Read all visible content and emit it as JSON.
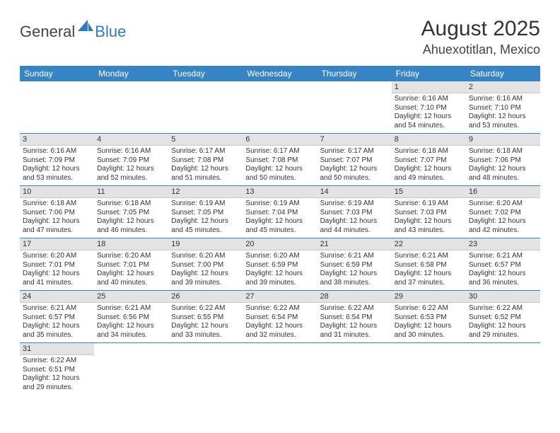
{
  "logo": {
    "general": "General",
    "blue": "Blue"
  },
  "title": "August 2025",
  "location": "Ahuexotitlan, Mexico",
  "colors": {
    "header_bg": "#3684c6",
    "header_text": "#ffffff",
    "daynum_bg": "#e3e3e3",
    "row_border": "#3684c6",
    "blue": "#2e7cbf"
  },
  "day_headers": [
    "Sunday",
    "Monday",
    "Tuesday",
    "Wednesday",
    "Thursday",
    "Friday",
    "Saturday"
  ],
  "weeks": [
    [
      null,
      null,
      null,
      null,
      null,
      {
        "n": "1",
        "sr": "Sunrise: 6:16 AM",
        "ss": "Sunset: 7:10 PM",
        "dl": "Daylight: 12 hours and 54 minutes."
      },
      {
        "n": "2",
        "sr": "Sunrise: 6:16 AM",
        "ss": "Sunset: 7:10 PM",
        "dl": "Daylight: 12 hours and 53 minutes."
      }
    ],
    [
      {
        "n": "3",
        "sr": "Sunrise: 6:16 AM",
        "ss": "Sunset: 7:09 PM",
        "dl": "Daylight: 12 hours and 53 minutes."
      },
      {
        "n": "4",
        "sr": "Sunrise: 6:16 AM",
        "ss": "Sunset: 7:09 PM",
        "dl": "Daylight: 12 hours and 52 minutes."
      },
      {
        "n": "5",
        "sr": "Sunrise: 6:17 AM",
        "ss": "Sunset: 7:08 PM",
        "dl": "Daylight: 12 hours and 51 minutes."
      },
      {
        "n": "6",
        "sr": "Sunrise: 6:17 AM",
        "ss": "Sunset: 7:08 PM",
        "dl": "Daylight: 12 hours and 50 minutes."
      },
      {
        "n": "7",
        "sr": "Sunrise: 6:17 AM",
        "ss": "Sunset: 7:07 PM",
        "dl": "Daylight: 12 hours and 50 minutes."
      },
      {
        "n": "8",
        "sr": "Sunrise: 6:18 AM",
        "ss": "Sunset: 7:07 PM",
        "dl": "Daylight: 12 hours and 49 minutes."
      },
      {
        "n": "9",
        "sr": "Sunrise: 6:18 AM",
        "ss": "Sunset: 7:06 PM",
        "dl": "Daylight: 12 hours and 48 minutes."
      }
    ],
    [
      {
        "n": "10",
        "sr": "Sunrise: 6:18 AM",
        "ss": "Sunset: 7:06 PM",
        "dl": "Daylight: 12 hours and 47 minutes."
      },
      {
        "n": "11",
        "sr": "Sunrise: 6:18 AM",
        "ss": "Sunset: 7:05 PM",
        "dl": "Daylight: 12 hours and 46 minutes."
      },
      {
        "n": "12",
        "sr": "Sunrise: 6:19 AM",
        "ss": "Sunset: 7:05 PM",
        "dl": "Daylight: 12 hours and 45 minutes."
      },
      {
        "n": "13",
        "sr": "Sunrise: 6:19 AM",
        "ss": "Sunset: 7:04 PM",
        "dl": "Daylight: 12 hours and 45 minutes."
      },
      {
        "n": "14",
        "sr": "Sunrise: 6:19 AM",
        "ss": "Sunset: 7:03 PM",
        "dl": "Daylight: 12 hours and 44 minutes."
      },
      {
        "n": "15",
        "sr": "Sunrise: 6:19 AM",
        "ss": "Sunset: 7:03 PM",
        "dl": "Daylight: 12 hours and 43 minutes."
      },
      {
        "n": "16",
        "sr": "Sunrise: 6:20 AM",
        "ss": "Sunset: 7:02 PM",
        "dl": "Daylight: 12 hours and 42 minutes."
      }
    ],
    [
      {
        "n": "17",
        "sr": "Sunrise: 6:20 AM",
        "ss": "Sunset: 7:01 PM",
        "dl": "Daylight: 12 hours and 41 minutes."
      },
      {
        "n": "18",
        "sr": "Sunrise: 6:20 AM",
        "ss": "Sunset: 7:01 PM",
        "dl": "Daylight: 12 hours and 40 minutes."
      },
      {
        "n": "19",
        "sr": "Sunrise: 6:20 AM",
        "ss": "Sunset: 7:00 PM",
        "dl": "Daylight: 12 hours and 39 minutes."
      },
      {
        "n": "20",
        "sr": "Sunrise: 6:20 AM",
        "ss": "Sunset: 6:59 PM",
        "dl": "Daylight: 12 hours and 39 minutes."
      },
      {
        "n": "21",
        "sr": "Sunrise: 6:21 AM",
        "ss": "Sunset: 6:59 PM",
        "dl": "Daylight: 12 hours and 38 minutes."
      },
      {
        "n": "22",
        "sr": "Sunrise: 6:21 AM",
        "ss": "Sunset: 6:58 PM",
        "dl": "Daylight: 12 hours and 37 minutes."
      },
      {
        "n": "23",
        "sr": "Sunrise: 6:21 AM",
        "ss": "Sunset: 6:57 PM",
        "dl": "Daylight: 12 hours and 36 minutes."
      }
    ],
    [
      {
        "n": "24",
        "sr": "Sunrise: 6:21 AM",
        "ss": "Sunset: 6:57 PM",
        "dl": "Daylight: 12 hours and 35 minutes."
      },
      {
        "n": "25",
        "sr": "Sunrise: 6:21 AM",
        "ss": "Sunset: 6:56 PM",
        "dl": "Daylight: 12 hours and 34 minutes."
      },
      {
        "n": "26",
        "sr": "Sunrise: 6:22 AM",
        "ss": "Sunset: 6:55 PM",
        "dl": "Daylight: 12 hours and 33 minutes."
      },
      {
        "n": "27",
        "sr": "Sunrise: 6:22 AM",
        "ss": "Sunset: 6:54 PM",
        "dl": "Daylight: 12 hours and 32 minutes."
      },
      {
        "n": "28",
        "sr": "Sunrise: 6:22 AM",
        "ss": "Sunset: 6:54 PM",
        "dl": "Daylight: 12 hours and 31 minutes."
      },
      {
        "n": "29",
        "sr": "Sunrise: 6:22 AM",
        "ss": "Sunset: 6:53 PM",
        "dl": "Daylight: 12 hours and 30 minutes."
      },
      {
        "n": "30",
        "sr": "Sunrise: 6:22 AM",
        "ss": "Sunset: 6:52 PM",
        "dl": "Daylight: 12 hours and 29 minutes."
      }
    ],
    [
      {
        "n": "31",
        "sr": "Sunrise: 6:22 AM",
        "ss": "Sunset: 6:51 PM",
        "dl": "Daylight: 12 hours and 29 minutes."
      },
      null,
      null,
      null,
      null,
      null,
      null
    ]
  ]
}
